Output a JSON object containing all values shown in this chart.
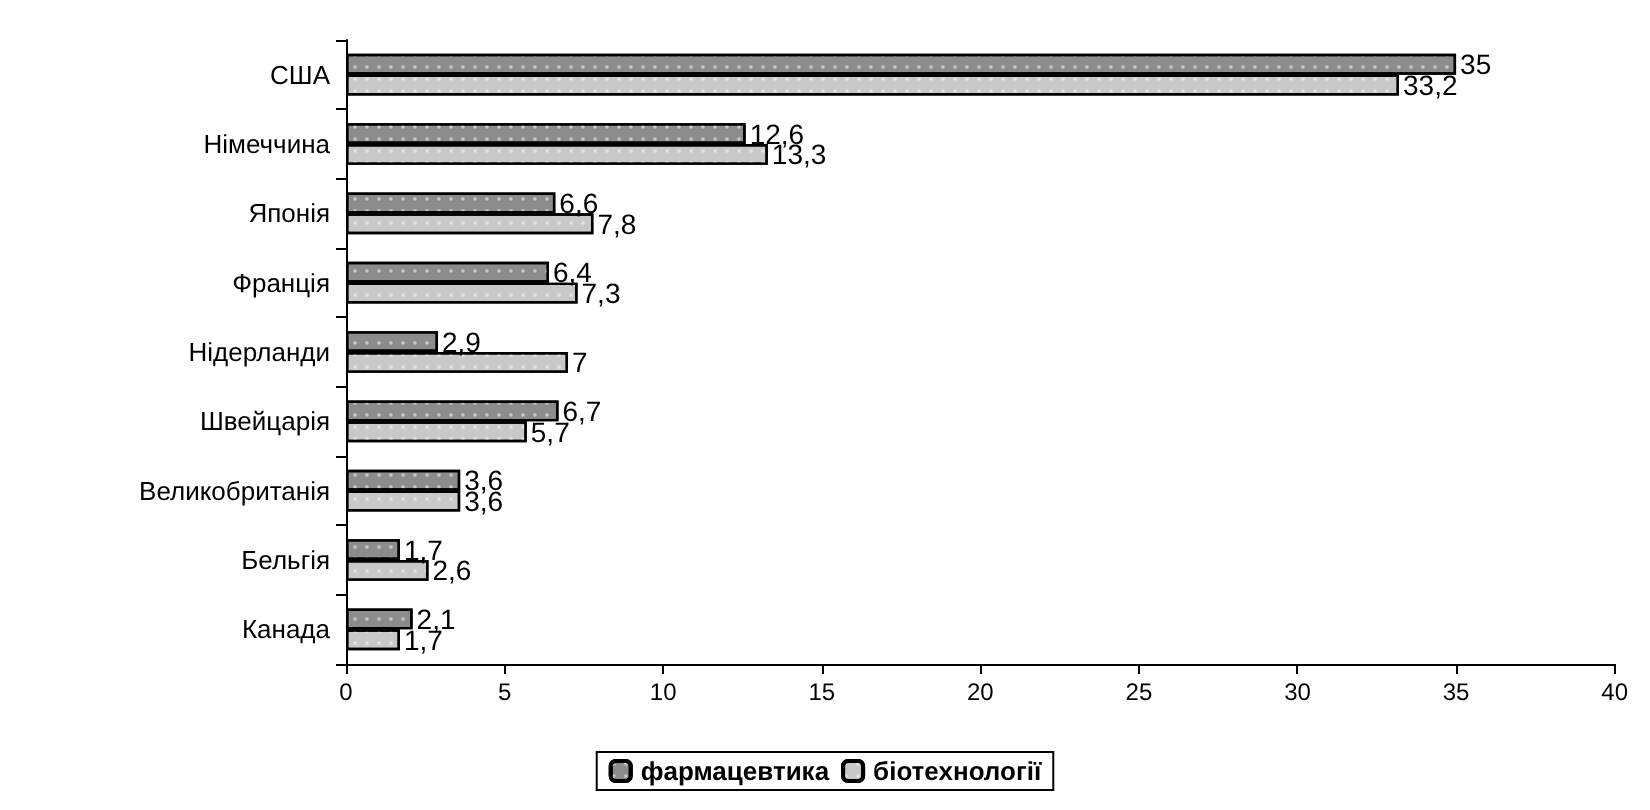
{
  "chart_data": {
    "type": "bar",
    "orientation": "horizontal",
    "categories": [
      "США",
      "Німеччина",
      "Японія",
      "Франція",
      "Нідерланди",
      "Швейцарія",
      "Великобританія",
      "Бельгія",
      "Канада"
    ],
    "series": [
      {
        "name": "фармацевтика",
        "color": "#8c8c8c",
        "values": [
          35,
          12.6,
          6.6,
          6.4,
          2.9,
          6.7,
          3.6,
          1.7,
          2.1
        ],
        "value_labels": [
          "35",
          "12,6",
          "6,6",
          "6,4",
          "2,9",
          "6,7",
          "3,6",
          "1,7",
          "2,1"
        ]
      },
      {
        "name": "біотехнології",
        "color": "#c8c8c8",
        "values": [
          33.2,
          13.3,
          7.8,
          7.3,
          7,
          5.7,
          3.6,
          2.6,
          1.7
        ],
        "value_labels": [
          "33,2",
          "13,3",
          "7,8",
          "7,3",
          "7",
          "5,7",
          "3,6",
          "2,6",
          "1,7"
        ]
      }
    ],
    "xlim": [
      0,
      40
    ],
    "xticks": [
      0,
      5,
      10,
      15,
      20,
      25,
      30,
      35,
      40
    ],
    "grid": false,
    "legend": "bottom"
  }
}
